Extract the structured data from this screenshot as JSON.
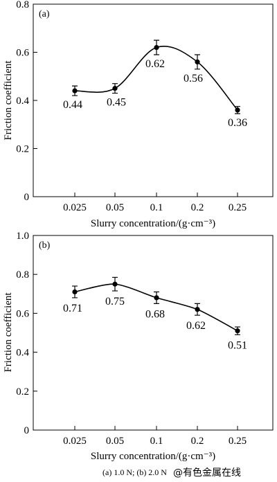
{
  "chart_data": [
    {
      "type": "line",
      "panel_label": "(a)",
      "categories": [
        "0.025",
        "0.05",
        "0.1",
        "0.2",
        "0.25"
      ],
      "values": [
        0.44,
        0.45,
        0.62,
        0.56,
        0.36
      ],
      "error": [
        0.02,
        0.02,
        0.03,
        0.03,
        0.015
      ],
      "data_labels": [
        "0.44",
        "0.45",
        "0.62",
        "0.56",
        "0.36"
      ],
      "xlabel": "Slurry concentration/(g·cm⁻³)",
      "ylabel": "Friction coefficient",
      "ylim": [
        0,
        0.8
      ],
      "yticks": [
        "0",
        "0.2",
        "0.4",
        "0.6",
        "0.8"
      ],
      "grid": false,
      "legend": "none"
    },
    {
      "type": "line",
      "panel_label": "(b)",
      "categories": [
        "0.025",
        "0.05",
        "0.1",
        "0.2",
        "0.25"
      ],
      "values": [
        0.71,
        0.75,
        0.68,
        0.62,
        0.51
      ],
      "error": [
        0.03,
        0.035,
        0.03,
        0.03,
        0.02
      ],
      "data_labels": [
        "0.71",
        "0.75",
        "0.68",
        "0.62",
        "0.51"
      ],
      "xlabel": "Slurry concentration/(g·cm⁻³)",
      "ylabel": "Friction coefficient",
      "ylim": [
        0,
        1.0
      ],
      "yticks": [
        "0",
        "0.2",
        "0.4",
        "0.6",
        "0.8",
        "1.0"
      ],
      "grid": false,
      "legend": "none"
    }
  ],
  "caption": "(a)  1.0 N; (b) 2.0 N",
  "watermark": "@有色金属在线",
  "colors": {
    "line": "#000000",
    "watermark": "#e86a6a"
  }
}
